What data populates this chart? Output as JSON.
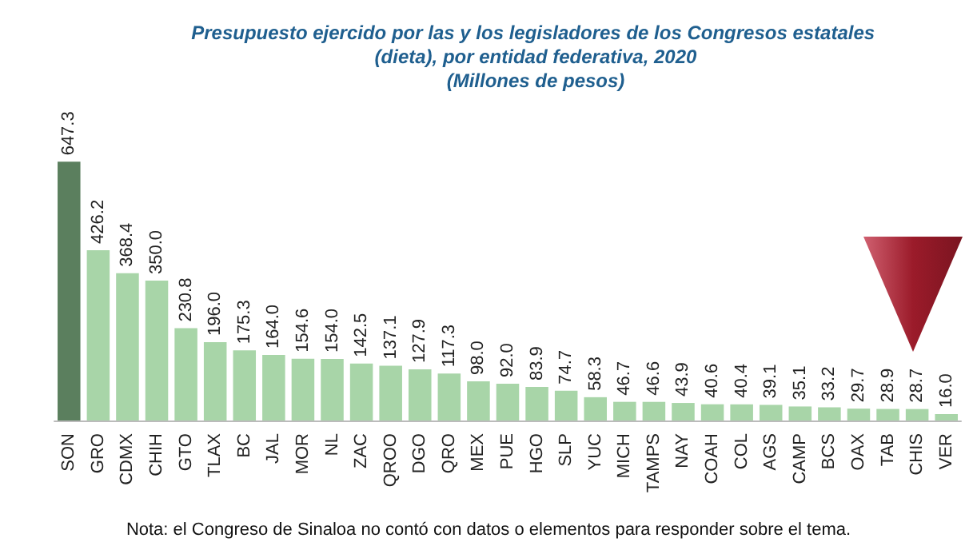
{
  "chart_data": {
    "type": "bar",
    "title": "Presupuesto ejercido por las y los legisladores de los Congresos estatales (dieta), por entidad federativa, 2020",
    "subtitle": "(Millones de pesos)",
    "categories": [
      "SON",
      "GRO",
      "CDMX",
      "CHIH",
      "GTO",
      "TLAX",
      "BC",
      "JAL",
      "MOR",
      "NL",
      "ZAC",
      "QROO",
      "DGO",
      "QRO",
      "MEX",
      "PUE",
      "HGO",
      "SLP",
      "YUC",
      "MICH",
      "TAMPS",
      "NAY",
      "COAH",
      "COL",
      "AGS",
      "CAMP",
      "BCS",
      "OAX",
      "TAB",
      "CHIS",
      "VER"
    ],
    "values": [
      647.3,
      426.2,
      368.4,
      350.0,
      230.8,
      196.0,
      175.3,
      164.0,
      154.6,
      154.0,
      142.5,
      137.1,
      127.9,
      117.3,
      98.0,
      92.0,
      83.9,
      74.7,
      58.3,
      46.7,
      46.6,
      43.9,
      40.6,
      40.4,
      39.1,
      35.1,
      33.2,
      29.7,
      28.9,
      28.7,
      16.0
    ],
    "value_labels": [
      "647.3",
      "426.2",
      "368.4",
      "350.0",
      "230.8",
      "196.0",
      "175.3",
      "164.0",
      "154.6",
      "154.0",
      "142.5",
      "137.1",
      "127.9",
      "117.3",
      "98.0",
      "92.0",
      "83.9",
      "74.7",
      "58.3",
      "46.7",
      "46.6",
      "43.9",
      "40.6",
      "40.4",
      "39.1",
      "35.1",
      "33.2",
      "29.7",
      "28.9",
      "28.7",
      "16.0"
    ],
    "colors": [
      "#5b7f5e",
      "#a8d5a8",
      "#a8d5a8",
      "#a8d5a8",
      "#a8d5a8",
      "#a8d5a8",
      "#a8d5a8",
      "#a8d5a8",
      "#a8d5a8",
      "#a8d5a8",
      "#a8d5a8",
      "#a8d5a8",
      "#a8d5a8",
      "#a8d5a8",
      "#a8d5a8",
      "#a8d5a8",
      "#a8d5a8",
      "#a8d5a8",
      "#a8d5a8",
      "#a8d5a8",
      "#a8d5a8",
      "#a8d5a8",
      "#a8d5a8",
      "#a8d5a8",
      "#a8d5a8",
      "#a8d5a8",
      "#a8d5a8",
      "#a8d5a8",
      "#a8d5a8",
      "#a8d5a8",
      "#a8d5a8"
    ],
    "annotations": [
      "Nota: el Congreso de Sinaloa no contó con datos o elementos para responder sobre el tema."
    ]
  }
}
